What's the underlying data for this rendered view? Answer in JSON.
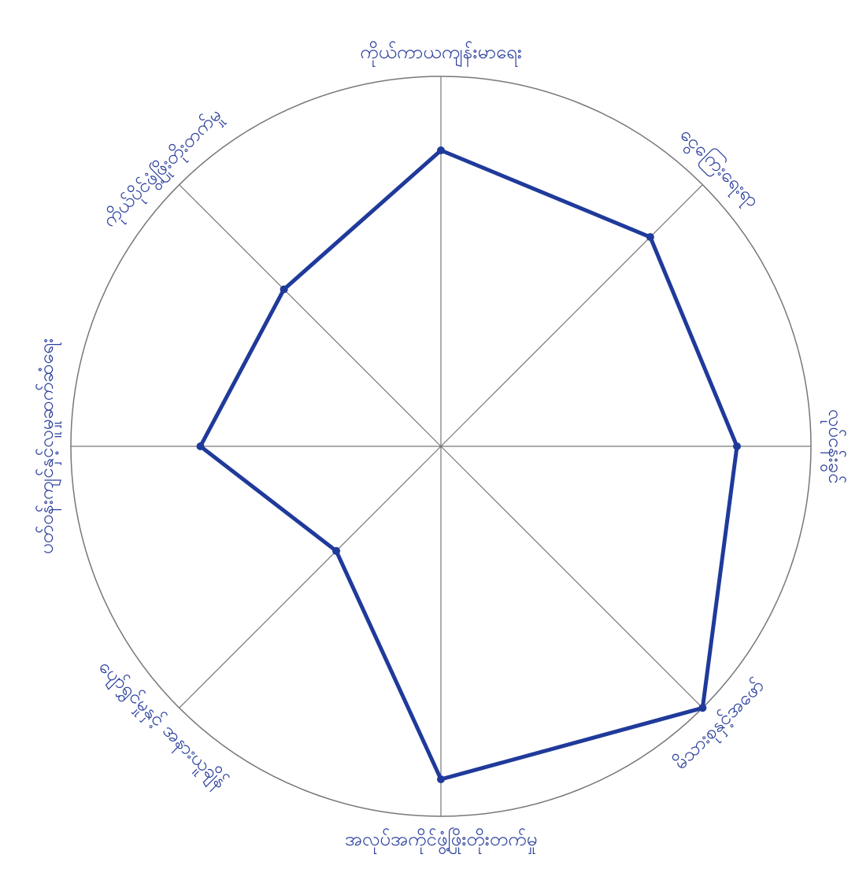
{
  "chart_data": {
    "type": "radar",
    "categories": [
      "ကိုယ်ကာယကျန်းမာရေး",
      "ငွေကြေးရေးရာ",
      "လုပ်ငန်းခွင်",
      "မိသားစုနှင့်အဖော်",
      "အလုပ်အကိုင်ဖွံ့ဖြိုးတိုးတက်မှု",
      "ပျော်ရွှင်မှုနှင့် အနားယူချိန်",
      "ပတ်ဝန်းကျင်နှင့်လူမှုဆက်ဆံရေး",
      "ကိုယ်ပိုင်ဖွံ့ဖြိုးတိုးတက်မှု"
    ],
    "values": [
      8,
      8,
      8,
      10,
      9,
      4,
      6.5,
      6
    ],
    "rlim": [
      0,
      10
    ],
    "color": "#1f3a9a"
  }
}
